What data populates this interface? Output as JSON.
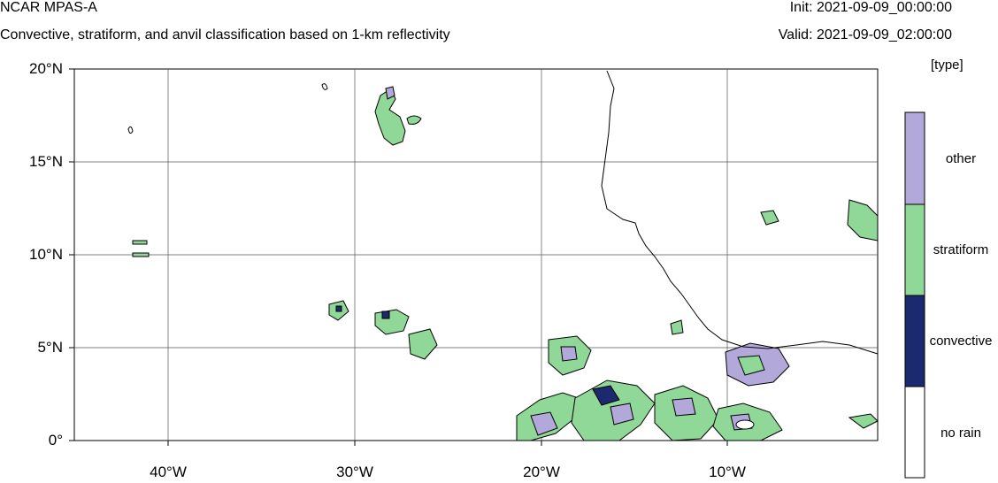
{
  "header": {
    "model": "NCAR MPAS-A",
    "description": "Convective, stratiform, and anvil classification based on 1-km reflectivity",
    "init": "Init: 2021-09-09_00:00:00",
    "valid": "Valid: 2021-09-09_02:00:00"
  },
  "map": {
    "lat_labels": [
      "20°N",
      "15°N",
      "10°N",
      "5°N",
      "0°"
    ],
    "lon_labels": [
      "40°W",
      "30°W",
      "20°W",
      "10°W"
    ],
    "lon_range": [
      -45,
      -2
    ],
    "lat_range": [
      0,
      20
    ]
  },
  "legend": {
    "units": "[type]",
    "categories": [
      {
        "label": "other",
        "color": "#b3a8da"
      },
      {
        "label": "stratiform",
        "color": "#8fd897"
      },
      {
        "label": "convective",
        "color": "#1b2a6e"
      },
      {
        "label": "no rain",
        "color": "#ffffff"
      }
    ]
  }
}
